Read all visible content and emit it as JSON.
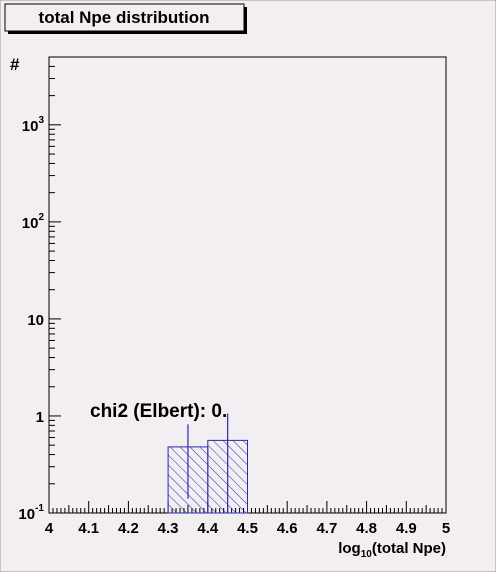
{
  "chart_data": {
    "type": "histogram",
    "title": "total Npe distribution",
    "y_label": "#",
    "x_label": {
      "base": "log",
      "sub": "10",
      "rest": "(total Npe)"
    },
    "annotation": "chi2 (Elbert): 0.",
    "bins": [
      4,
      4.1,
      4.2,
      4.3,
      4.4,
      4.5,
      4.6,
      4.7,
      4.8,
      4.9,
      5
    ],
    "values": [
      0,
      0,
      0,
      0.48,
      0.56,
      0,
      0,
      0,
      0,
      0
    ],
    "errors": [
      0,
      0,
      0,
      0.34,
      0.5,
      0,
      0,
      0,
      0,
      0
    ],
    "color": "#2a2ab0",
    "xlim": [
      4,
      5
    ],
    "ylim": [
      0.1,
      5000
    ],
    "log_y": true,
    "xticks": [
      4,
      4.1,
      4.2,
      4.3,
      4.4,
      4.5,
      4.6,
      4.7,
      4.8,
      4.9,
      5
    ],
    "yticks": [
      {
        "value": 0.1,
        "label": "10",
        "exp": "-1"
      },
      1,
      10,
      {
        "value": 100,
        "label": "10",
        "exp": "2"
      },
      {
        "value": 1000,
        "label": "10",
        "exp": "3"
      }
    ]
  }
}
